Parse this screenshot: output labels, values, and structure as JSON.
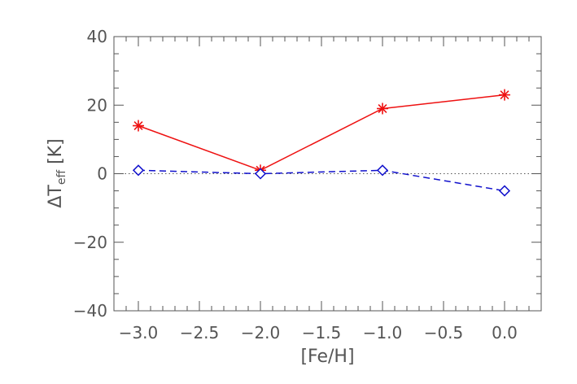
{
  "chart_data": {
    "type": "line",
    "xlabel": "[Fe/H]",
    "ylabel": {
      "prefix": "ΔT",
      "subscript": "eff",
      "suffix": " [K]"
    },
    "xlim": [
      -3.2,
      0.3
    ],
    "ylim": [
      -40,
      40
    ],
    "x_ticks": [
      -3.0,
      -2.5,
      -2.0,
      -1.5,
      -1.0,
      -0.5,
      0.0
    ],
    "x_tick_labels": [
      "−3.0",
      "−2.5",
      "−2.0",
      "−1.5",
      "−1.0",
      "−0.5",
      "0.0"
    ],
    "y_ticks": [
      -40,
      -20,
      0,
      20,
      40
    ],
    "y_tick_labels": [
      "−40",
      "−20",
      "0",
      "20",
      "40"
    ],
    "x_minor_step": 0.1,
    "y_minor_step": 5,
    "zero_line": true,
    "grid": false,
    "series": [
      {
        "color": "#ee1111",
        "line": "solid",
        "marker": "asterisk",
        "x": [
          -3.0,
          -2.0,
          -1.0,
          0.0
        ],
        "y": [
          14,
          1,
          19,
          23
        ]
      },
      {
        "color": "#1111cc",
        "line": "dashed",
        "marker": "diamond",
        "x": [
          -3.0,
          -2.0,
          -1.0,
          0.0
        ],
        "y": [
          1,
          0,
          1,
          -5
        ]
      }
    ]
  }
}
